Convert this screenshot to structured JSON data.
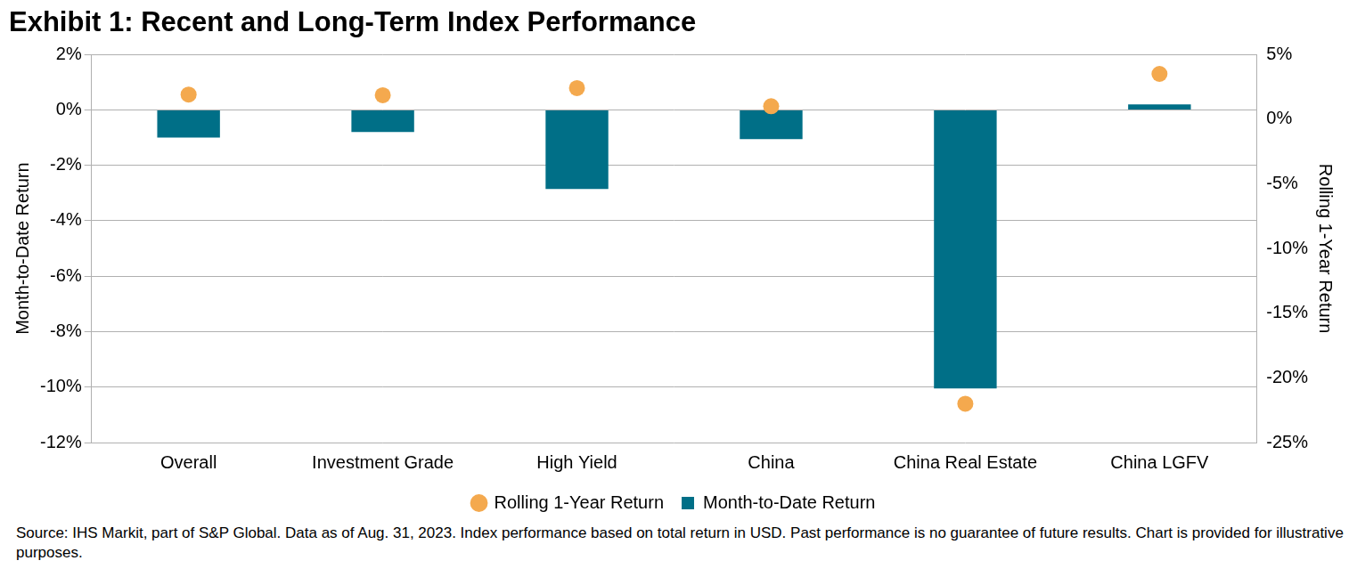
{
  "chart_data": {
    "type": "bar",
    "title": "Exhibit 1: Recent and Long-Term Index Performance",
    "note": "Source: IHS Markit, part of S&P Global.  Data as of Aug. 31, 2023.  Index performance based on total return in USD.  Past performance is no guarantee of future results.  Chart is provided for illustrative purposes.",
    "y_label": "Month-to-Date Return",
    "y2_label": "Rolling 1-Year Return",
    "categories": [
      "Overall",
      "Investment Grade",
      "High Yield",
      "China",
      "China Real Estate",
      "China LGFV"
    ],
    "series": [
      {
        "name": "Month-to-Date Return",
        "type": "bar",
        "color": "#006F87",
        "values": [
          -1.0,
          -0.8,
          -2.85,
          -1.05,
          -10.05,
          0.2
        ]
      },
      {
        "name": "Rolling 1-Year Return",
        "type": "scatter",
        "marker": "circle",
        "color": "#F4A94E",
        "axis": "y2",
        "values": [
          1.9,
          1.85,
          2.4,
          1.0,
          -22.0,
          3.5
        ]
      }
    ],
    "ylim": [
      -12,
      2
    ],
    "yticks": [
      {
        "value": -12,
        "label": "-12%"
      },
      {
        "value": -10,
        "label": "-10%"
      },
      {
        "value": -8,
        "label": "-8%"
      },
      {
        "value": -6,
        "label": "-6%"
      },
      {
        "value": -4,
        "label": "-4%"
      },
      {
        "value": -2,
        "label": "-2%"
      },
      {
        "value": 0,
        "label": "0%"
      },
      {
        "value": 2,
        "label": "2%"
      }
    ],
    "y2lim": [
      -25,
      5
    ],
    "y2ticks": [
      {
        "value": -25,
        "label": "-25%"
      },
      {
        "value": -20,
        "label": "-20%"
      },
      {
        "value": -15,
        "label": "-15%"
      },
      {
        "value": -10,
        "label": "-10%"
      },
      {
        "value": -5,
        "label": "-5%"
      },
      {
        "value": 0,
        "label": "0%"
      },
      {
        "value": 5,
        "label": "5%"
      }
    ],
    "grid": true,
    "legend": "bottom"
  }
}
